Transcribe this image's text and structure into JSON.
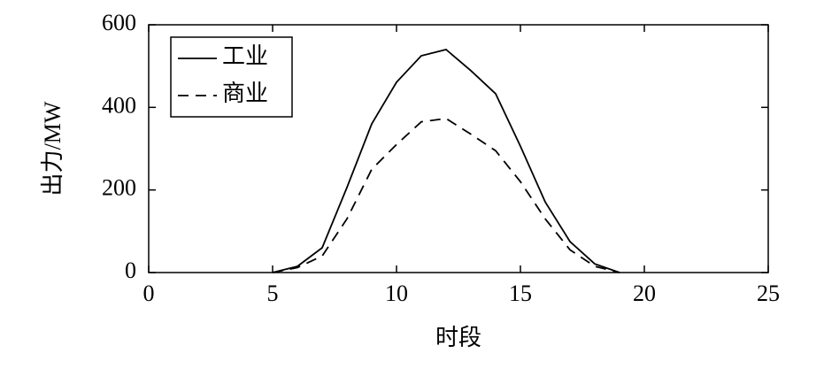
{
  "chart_data": {
    "type": "line",
    "x_label": "时段",
    "y_label": "出力/MW",
    "x": [
      5,
      6,
      7,
      8,
      9,
      10,
      11,
      12,
      13,
      14,
      15,
      16,
      17,
      18,
      19
    ],
    "series": [
      {
        "name": "工业",
        "color": "#000000",
        "dash": "solid",
        "values": [
          0,
          15,
          60,
          206,
          360,
          461,
          525,
          540,
          489,
          433,
          306,
          171,
          75,
          21,
          0
        ]
      },
      {
        "name": "商业",
        "color": "#000000",
        "dash": "dashed",
        "values": [
          0,
          12,
          40,
          130,
          250,
          310,
          365,
          373,
          335,
          295,
          220,
          130,
          55,
          15,
          0
        ]
      }
    ],
    "xlim": [
      0,
      25
    ],
    "xticks": [
      0,
      5,
      10,
      15,
      20,
      25
    ],
    "ylim": [
      0,
      600
    ],
    "yticks": [
      0,
      200,
      400,
      600
    ],
    "legend": "upper-left",
    "grid": false
  }
}
